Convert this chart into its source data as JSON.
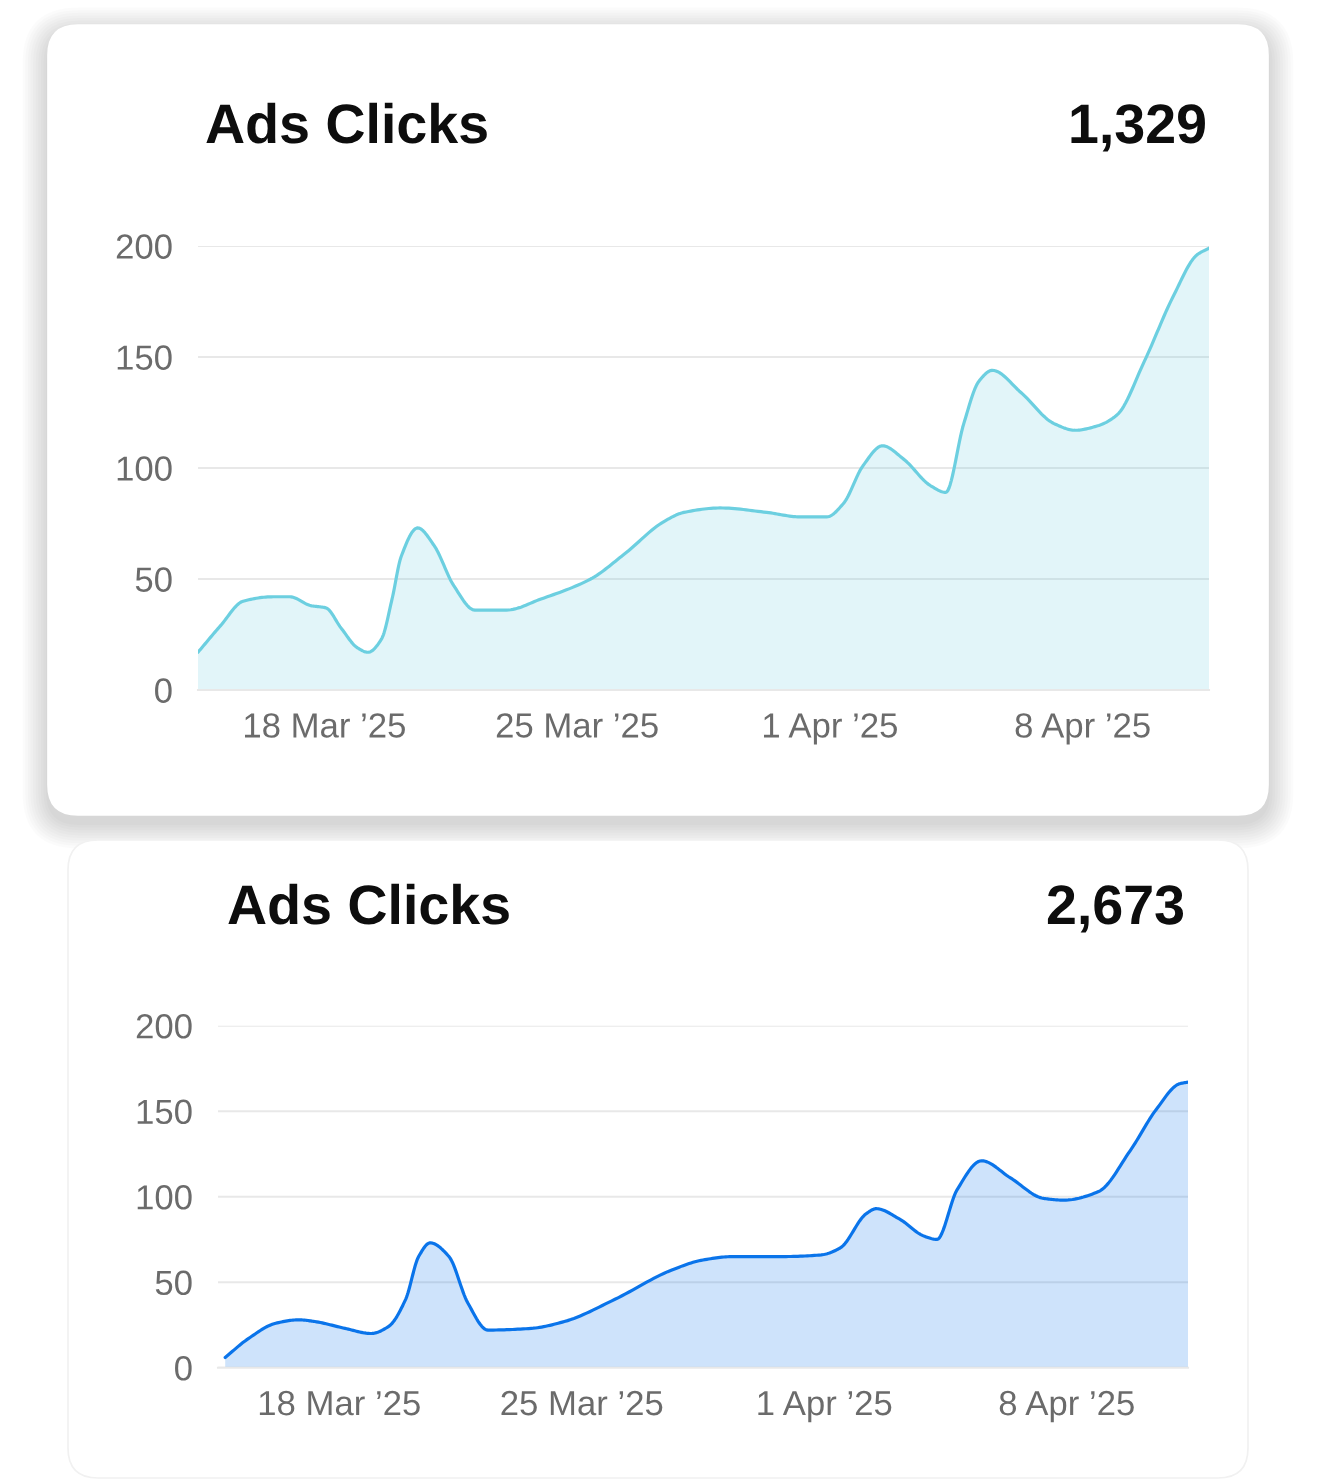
{
  "chart_data": [
    {
      "type": "area",
      "title": "Ads Clicks",
      "annotations": [
        "1,329"
      ],
      "color": "#6ccfe0",
      "x": [
        "2025-03-14T12:00",
        "2025-03-15T03:00",
        "2025-03-15T18:00",
        "2025-03-16T14:00",
        "2025-03-17T01:00",
        "2025-03-17T15:00",
        "2025-03-18T01:00",
        "2025-03-18T11:00",
        "2025-03-18T22:00",
        "2025-03-19T05:00",
        "2025-03-19T14:00",
        "2025-03-19T21:00",
        "2025-03-20T03:00",
        "2025-03-20T14:00",
        "2025-03-21T01:00",
        "2025-03-21T14:00",
        "2025-03-22T04:00",
        "2025-03-23T01:00",
        "2025-03-24T00:00",
        "2025-03-25T09:00",
        "2025-03-26T07:00",
        "2025-03-27T10:00",
        "2025-03-27T23:00",
        "2025-03-28T23:00",
        "2025-03-30T06:00",
        "2025-03-31T04:00",
        "2025-03-31T22:00",
        "2025-04-01T09:00",
        "2025-04-01T22:00",
        "2025-04-02T11:00",
        "2025-04-03T01:00",
        "2025-04-03T19:00",
        "2025-04-04T05:00",
        "2025-04-04T17:00",
        "2025-04-05T03:00",
        "2025-04-05T12:00",
        "2025-04-06T07:00",
        "2025-04-07T05:00",
        "2025-04-07T19:00",
        "2025-04-08T10:00",
        "2025-04-08T23:00",
        "2025-04-09T17:00",
        "2025-04-10T12:00",
        "2025-04-11T04:00",
        "2025-04-11T12:00"
      ],
      "values": [
        17,
        29,
        40,
        42,
        42,
        38,
        37,
        28,
        19,
        17,
        23,
        41,
        60,
        73,
        65,
        47,
        36,
        36,
        41,
        50,
        61,
        76,
        80,
        82,
        80,
        78,
        78,
        84,
        101,
        110,
        104,
        92,
        89,
        120,
        139,
        144,
        134,
        120,
        117,
        119,
        124,
        148,
        177,
        196,
        199
      ],
      "xlim": [
        "2025-03-14T12:00",
        "2025-04-11T12:00"
      ],
      "xticks": [
        {
          "value": "2025-03-18",
          "label": "18 Mar ’25"
        },
        {
          "value": "2025-03-25",
          "label": "25 Mar ’25"
        },
        {
          "value": "2025-04-01",
          "label": "1 Apr ’25"
        },
        {
          "value": "2025-04-08",
          "label": "8 Apr ’25"
        }
      ],
      "ylim": [
        0,
        200
      ],
      "yticks": [
        0,
        50,
        100,
        150,
        200
      ],
      "grid": "y"
    },
    {
      "type": "area",
      "title": "Ads Clicks",
      "annotations": [
        "2,673"
      ],
      "color": "#0a74ea",
      "x": [
        "2025-03-14T17:00",
        "2025-03-15T09:00",
        "2025-03-16T04:00",
        "2025-03-16T20:00",
        "2025-03-17T07:00",
        "2025-03-18T04:00",
        "2025-03-18T22:00",
        "2025-03-19T10:00",
        "2025-03-19T22:00",
        "2025-03-20T07:00",
        "2025-03-20T15:00",
        "2025-03-21T04:00",
        "2025-03-21T17:00",
        "2025-03-22T07:00",
        "2025-03-23T13:00",
        "2025-03-24T12:00",
        "2025-03-25T23:00",
        "2025-03-27T14:00",
        "2025-03-28T12:00",
        "2025-03-29T09:00",
        "2025-03-30T20:00",
        "2025-03-31T22:00",
        "2025-04-01T11:00",
        "2025-04-02T05:00",
        "2025-04-02T12:00",
        "2025-04-03T04:00",
        "2025-04-03T21:00",
        "2025-04-04T06:00",
        "2025-04-04T20:00",
        "2025-04-05T13:00",
        "2025-04-06T09:00",
        "2025-04-07T08:00",
        "2025-04-07T22:00",
        "2025-04-08T22:00",
        "2025-04-09T20:00",
        "2025-04-10T14:00",
        "2025-04-11T06:00",
        "2025-04-11T12:00"
      ],
      "values": [
        6,
        17,
        26,
        28,
        27,
        23,
        20,
        24,
        40,
        65,
        73,
        65,
        38,
        22,
        23,
        27,
        40,
        57,
        63,
        65,
        65,
        66,
        70,
        90,
        93,
        87,
        77,
        75,
        104,
        121,
        111,
        99,
        98,
        103,
        127,
        151,
        166,
        167
      ],
      "xlim": [
        "2025-03-14T12:00",
        "2025-04-11T12:00"
      ],
      "xticks": [
        {
          "value": "2025-03-18",
          "label": "18 Mar ’25"
        },
        {
          "value": "2025-03-25",
          "label": "25 Mar ’25"
        },
        {
          "value": "2025-04-01",
          "label": "1 Apr ’25"
        },
        {
          "value": "2025-04-08",
          "label": "8 Apr ’25"
        }
      ],
      "ylim": [
        0,
        200
      ],
      "yticks": [
        0,
        50,
        100,
        150,
        200
      ],
      "grid": "y"
    }
  ]
}
